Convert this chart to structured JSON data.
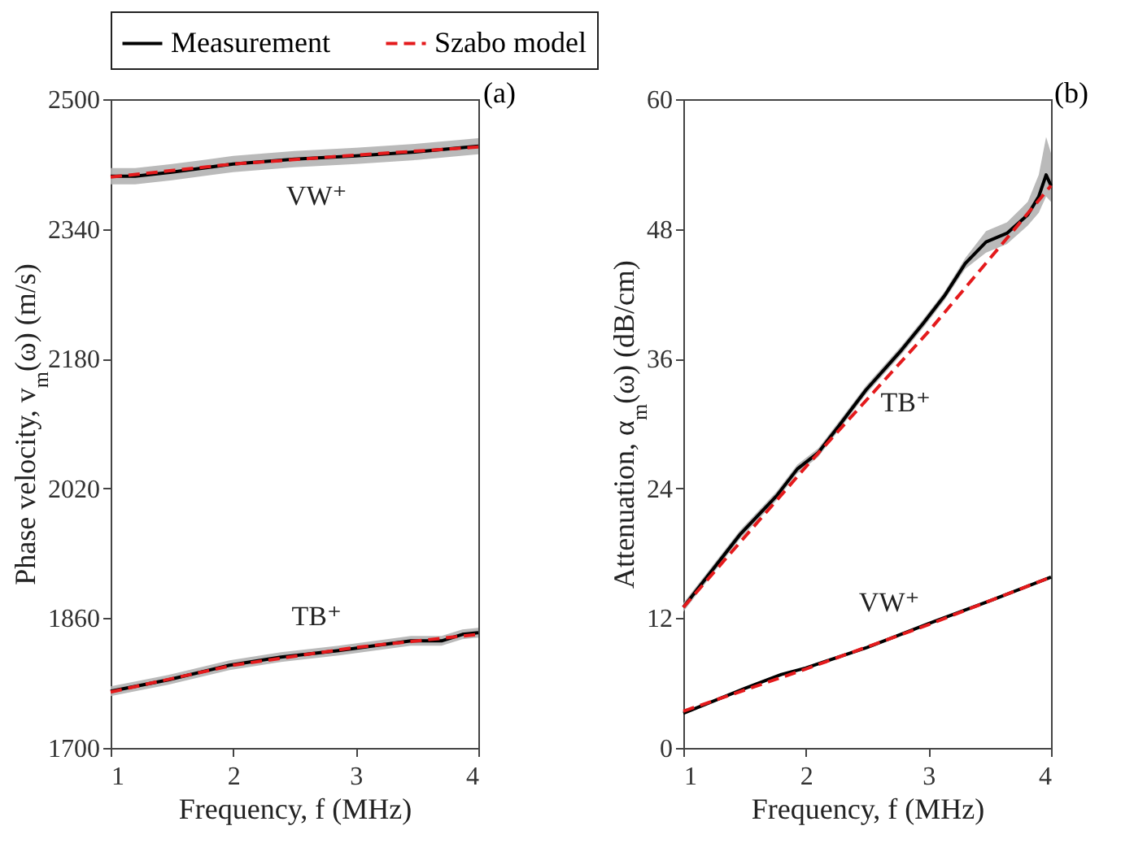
{
  "chart_data": [
    {
      "type": "line",
      "title": "(a)",
      "xlabel": "Frequency, f (MHz)",
      "ylabel": "Phase velocity, v$_{m}$(ω) (m/s)",
      "xlim": [
        1,
        4
      ],
      "xticks": [
        1,
        2,
        3,
        4
      ],
      "ylim": [
        1700,
        2500
      ],
      "yticks": [
        1700,
        1860,
        2020,
        2180,
        2340,
        2500
      ],
      "legend": "top",
      "series": [
        {
          "name": "Measurement",
          "color": "#000000",
          "line_style": "solid",
          "x": [
            1,
            1.2,
            1.5,
            2,
            2.5,
            3,
            3.5,
            4
          ],
          "values": [
            2405,
            2405,
            2410,
            2420,
            2426,
            2430,
            2435,
            2442
          ],
          "lower": [
            2395,
            2395,
            2400,
            2410,
            2416,
            2420,
            2425,
            2432
          ],
          "upper": [
            2415,
            2415,
            2420,
            2430,
            2436,
            2440,
            2445,
            2452
          ]
        },
        {
          "name": "Szabo model",
          "color": "#e41a1c",
          "line_style": "dashed",
          "x": [
            1,
            2,
            3,
            4
          ],
          "values": [
            2404,
            2420,
            2431,
            2441
          ]
        },
        {
          "color": "#000000",
          "line_style": "solid",
          "x": [
            1,
            1.47,
            1.97,
            2.39,
            2.86,
            3.45,
            3.7,
            3.87,
            4
          ],
          "values": [
            1770,
            1784,
            1802,
            1812,
            1820,
            1832,
            1832,
            1840,
            1842
          ],
          "lower": [
            1764,
            1778,
            1796,
            1806,
            1814,
            1826,
            1826,
            1834,
            1836
          ],
          "upper": [
            1776,
            1790,
            1808,
            1818,
            1826,
            1838,
            1838,
            1846,
            1848
          ]
        },
        {
          "color": "#e41a1c",
          "line_style": "dashed",
          "x": [
            1,
            2,
            3,
            4
          ],
          "values": [
            1769,
            1802,
            1824,
            1840
          ]
        }
      ],
      "annotations": [
        "VW⁺",
        "TB⁺"
      ]
    },
    {
      "type": "line",
      "title": "(b)",
      "xlabel": "Frequency, f (MHz)",
      "ylabel": "Attenuation, α$_{m}$(ω) (dB/cm)",
      "xlim": [
        1,
        4
      ],
      "xticks": [
        1,
        2,
        3,
        4
      ],
      "ylim": [
        0,
        60
      ],
      "yticks": [
        0,
        12,
        24,
        36,
        48,
        60
      ],
      "series": [
        {
          "color": "#000000",
          "line_style": "solid",
          "x": [
            1,
            1.46,
            1.76,
            1.93,
            2.1,
            2.27,
            2.49,
            2.78,
            2.96,
            3.13,
            3.3,
            3.47,
            3.64,
            3.81,
            3.9,
            3.96,
            4
          ],
          "values": [
            13,
            19.7,
            23.3,
            25.8,
            27.3,
            29.8,
            33.1,
            36.8,
            39.3,
            41.8,
            44.8,
            46.8,
            47.6,
            49.3,
            51,
            53,
            52
          ],
          "lower": [
            12.6,
            19.3,
            22.9,
            25.4,
            26.9,
            29.4,
            32.7,
            36.4,
            38.9,
            41.4,
            44.3,
            45.8,
            46.6,
            48.3,
            49.5,
            51,
            50.5
          ],
          "upper": [
            13.4,
            20.1,
            23.7,
            26.2,
            27.7,
            30.2,
            33.5,
            37.2,
            39.7,
            42.2,
            45.3,
            47.8,
            48.6,
            50.5,
            53,
            56.5,
            55
          ]
        },
        {
          "color": "#e41a1c",
          "line_style": "dashed",
          "x": [
            1,
            2,
            3,
            4
          ],
          "values": [
            13,
            26,
            38.5,
            52
          ]
        },
        {
          "color": "#000000",
          "line_style": "solid",
          "x": [
            1,
            1.5,
            1.8,
            2,
            2.5,
            3,
            3.5,
            4
          ],
          "values": [
            3.2,
            5.5,
            6.8,
            7.4,
            9.3,
            11.5,
            13.6,
            15.8
          ]
        },
        {
          "color": "#e41a1c",
          "line_style": "dashed",
          "x": [
            1,
            2,
            3,
            4
          ],
          "values": [
            3.4,
            7.3,
            11.4,
            15.8
          ]
        }
      ],
      "annotations": [
        "TB⁺",
        "VW⁺"
      ]
    }
  ]
}
